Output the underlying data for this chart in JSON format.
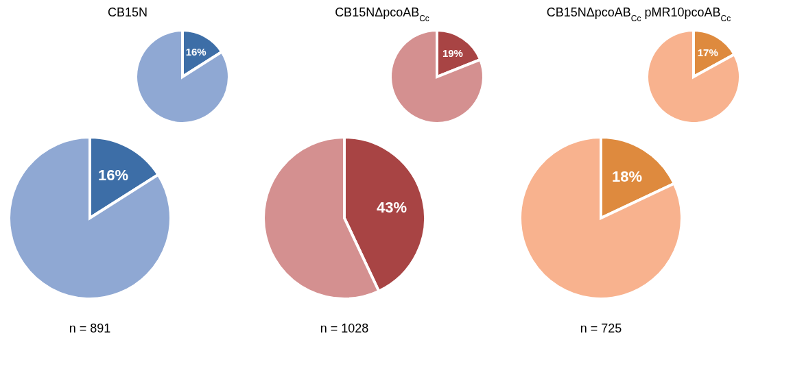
{
  "chart_data": [
    {
      "type": "pie",
      "title": "CB15N",
      "categories": [
        null,
        null
      ],
      "values": [
        16,
        84
      ],
      "colors": [
        "#3d6ea7",
        "#8fa8d3"
      ],
      "value_labels": [
        "16%",
        null
      ]
    },
    {
      "type": "pie",
      "categories": [
        null,
        null
      ],
      "values": [
        16,
        84
      ],
      "colors": [
        "#3d6ea7",
        "#8fa8d3"
      ],
      "value_labels": [
        "16%",
        null
      ],
      "annotations": [
        "n = 891"
      ]
    },
    {
      "type": "pie",
      "title": "CB15NΔpcoAB$_{Cc}$",
      "categories": [
        null,
        null
      ],
      "values": [
        19,
        81
      ],
      "colors": [
        "#a84444",
        "#d49090"
      ],
      "value_labels": [
        "19%",
        null
      ]
    },
    {
      "type": "pie",
      "categories": [
        null,
        null
      ],
      "values": [
        43,
        57
      ],
      "colors": [
        "#a84444",
        "#d49090"
      ],
      "value_labels": [
        "43%",
        null
      ],
      "annotations": [
        "n = 1028"
      ]
    },
    {
      "type": "pie",
      "title": "CB15NΔpcoAB$_{Cc}$ pMR10pcoAB$_{Cc}$",
      "categories": [
        null,
        null
      ],
      "values": [
        17,
        83
      ],
      "colors": [
        "#de8a3e",
        "#f8b28e"
      ],
      "value_labels": [
        "17%",
        null
      ]
    },
    {
      "type": "pie",
      "categories": [
        null,
        null
      ],
      "values": [
        18,
        82
      ],
      "colors": [
        "#de8a3e",
        "#f8b28e"
      ],
      "value_labels": [
        "18%",
        null
      ],
      "annotations": [
        "n = 725"
      ]
    }
  ]
}
